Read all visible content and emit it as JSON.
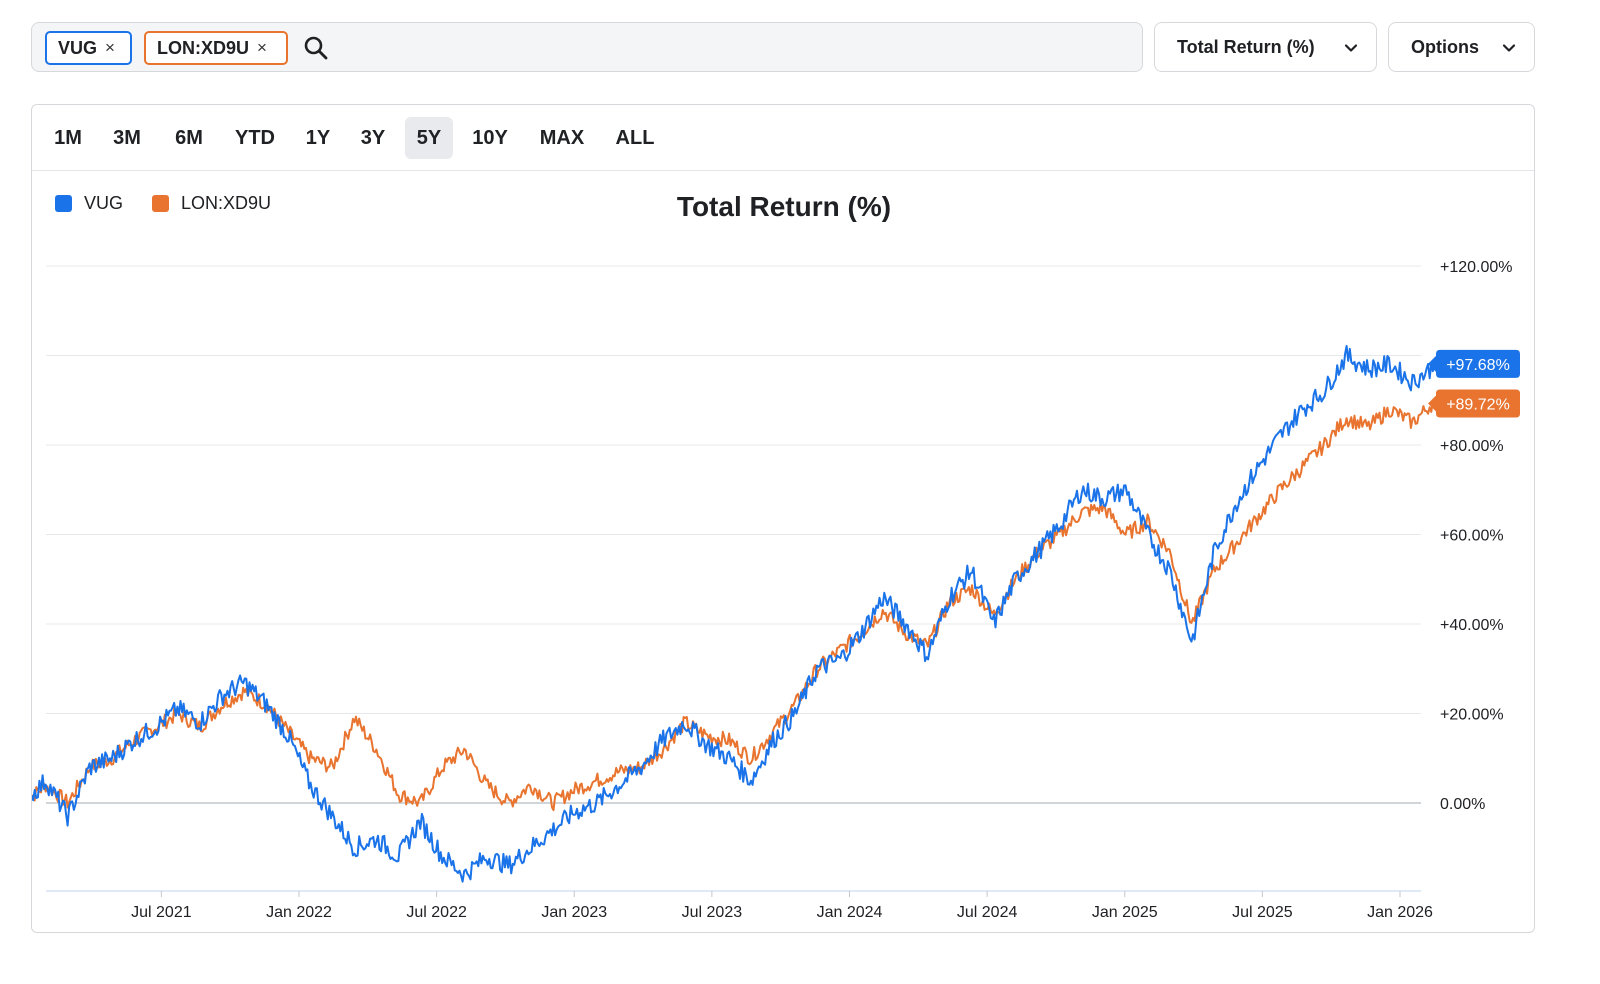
{
  "search": {
    "chips": [
      {
        "label": "VUG",
        "color": "#1a73e8"
      },
      {
        "label": "LON:XD9U",
        "color": "#e8742f"
      }
    ],
    "close_glyph": "×",
    "icon": "search-icon"
  },
  "metric_dropdown": {
    "label": "Total Return (%)",
    "icon": "chevron-down-icon"
  },
  "options_dropdown": {
    "label": "Options",
    "icon": "chevron-down-icon"
  },
  "time_ranges": [
    "1M",
    "3M",
    "6M",
    "YTD",
    "1Y",
    "3Y",
    "5Y",
    "10Y",
    "MAX",
    "ALL"
  ],
  "active_range": "5Y",
  "chart_data": {
    "type": "line",
    "title": "Total Return (%)",
    "xlabel": "",
    "ylabel": "",
    "x_start": "2021-01",
    "x_end": "2026-01",
    "x_ticks": [
      "Jul 2021",
      "Jan 2022",
      "Jul 2022",
      "Jan 2023",
      "Jul 2023",
      "Jan 2024",
      "Jul 2024",
      "Jan 2025",
      "Jul 2025",
      "Jan 2026"
    ],
    "y_ticks": [
      "+120.00%",
      "+80.00%",
      "+60.00%",
      "+40.00%",
      "+20.00%",
      "0.00%"
    ],
    "y_tick_values": [
      120,
      80,
      60,
      40,
      20,
      0
    ],
    "ylim": [
      -20,
      120
    ],
    "grid": true,
    "legend_position": "top-left",
    "series": [
      {
        "name": "VUG",
        "color": "#1a73e8",
        "last_label": "+97.68%",
        "values": [
          0,
          5,
          -3,
          8,
          10,
          14,
          17,
          21,
          18,
          24,
          27,
          22,
          15,
          4,
          -3,
          -10,
          -8,
          -12,
          -4,
          -12,
          -16,
          -12,
          -14,
          -10,
          -6,
          -2,
          0,
          4,
          8,
          14,
          18,
          13,
          10,
          5,
          14,
          20,
          30,
          32,
          38,
          46,
          40,
          33,
          46,
          52,
          40,
          50,
          56,
          62,
          70,
          68,
          70,
          60,
          52,
          36,
          56,
          67,
          75,
          82,
          88,
          92,
          100,
          97,
          98,
          94,
          97.68
        ]
      },
      {
        "name": "LON:XD9U",
        "color": "#e8742f",
        "last_label": "+89.72%",
        "values": [
          0,
          4,
          0,
          8,
          10,
          14,
          17,
          20,
          17,
          22,
          25,
          22,
          16,
          10,
          8,
          19,
          12,
          2,
          0,
          8,
          12,
          4,
          0,
          4,
          0,
          3,
          5,
          7,
          8,
          12,
          18,
          15,
          14,
          10,
          16,
          22,
          30,
          34,
          38,
          43,
          38,
          35,
          45,
          48,
          42,
          50,
          56,
          60,
          65,
          66,
          60,
          63,
          56,
          40,
          52,
          58,
          64,
          70,
          75,
          80,
          86,
          84,
          88,
          85,
          89.72
        ]
      }
    ]
  }
}
